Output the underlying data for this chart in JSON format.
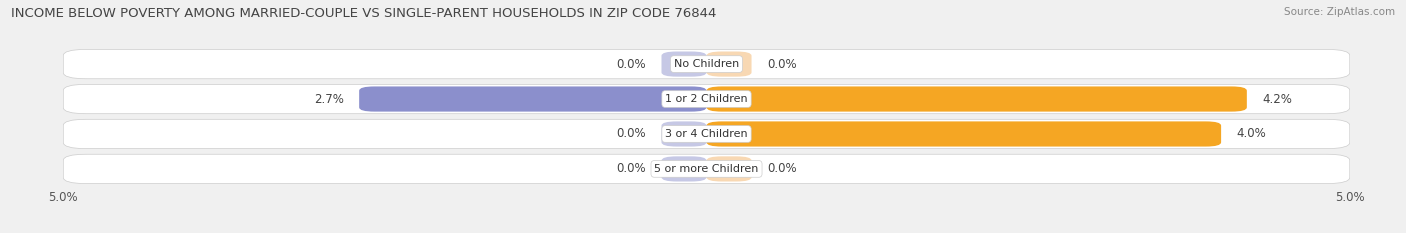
{
  "title": "INCOME BELOW POVERTY AMONG MARRIED-COUPLE VS SINGLE-PARENT HOUSEHOLDS IN ZIP CODE 76844",
  "source": "Source: ZipAtlas.com",
  "categories": [
    "No Children",
    "1 or 2 Children",
    "3 or 4 Children",
    "5 or more Children"
  ],
  "married_values": [
    0.0,
    2.7,
    0.0,
    0.0
  ],
  "single_values": [
    0.0,
    4.2,
    4.0,
    0.0
  ],
  "max_val": 5.0,
  "married_color": "#8b8fcc",
  "married_color_light": "#b8bbdf",
  "single_color": "#f5a623",
  "single_color_light": "#f7cfa0",
  "row_bg_color": "#ebebeb",
  "title_fontsize": 9.5,
  "val_fontsize": 8.5,
  "cat_fontsize": 8,
  "source_fontsize": 7.5,
  "legend_fontsize": 8,
  "axis_tick_fontsize": 8.5
}
